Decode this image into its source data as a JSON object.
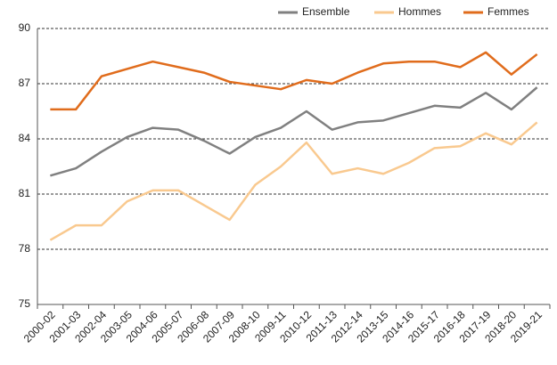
{
  "chart_data": {
    "type": "line",
    "categories": [
      "2000-02",
      "2001-03",
      "2002-04",
      "2003-05",
      "2004-06",
      "2005-07",
      "2006-08",
      "2007-09",
      "2008-10",
      "2009-11",
      "2010-12",
      "2011-13",
      "2012-14",
      "2013-15",
      "2014-16",
      "2015-17",
      "2016-18",
      "2017-19",
      "2018-20",
      "2019-21"
    ],
    "series": [
      {
        "name": "Ensemble",
        "color": "#808080",
        "values": [
          82.0,
          82.4,
          83.3,
          84.1,
          84.6,
          84.5,
          83.9,
          83.2,
          84.1,
          84.6,
          85.5,
          84.5,
          84.9,
          85.0,
          85.4,
          85.8,
          85.7,
          86.5,
          85.6,
          86.8
        ]
      },
      {
        "name": "Hommes",
        "color": "#f9c98f",
        "values": [
          78.5,
          79.3,
          79.3,
          80.6,
          81.2,
          81.2,
          80.4,
          79.6,
          81.5,
          82.5,
          83.8,
          82.1,
          82.4,
          82.1,
          82.7,
          83.5,
          83.6,
          84.3,
          83.7,
          84.9
        ]
      },
      {
        "name": "Femmes",
        "color": "#e06c1c",
        "values": [
          85.6,
          85.6,
          87.4,
          87.8,
          88.2,
          87.9,
          87.6,
          87.1,
          86.9,
          86.7,
          87.2,
          87.0,
          87.6,
          88.1,
          88.2,
          88.2,
          87.9,
          88.7,
          87.5,
          88.6
        ]
      }
    ],
    "ylim": [
      75,
      90
    ],
    "yticks": [
      75,
      78,
      81,
      84,
      87,
      90
    ],
    "grid": true,
    "legend": "top-right"
  }
}
